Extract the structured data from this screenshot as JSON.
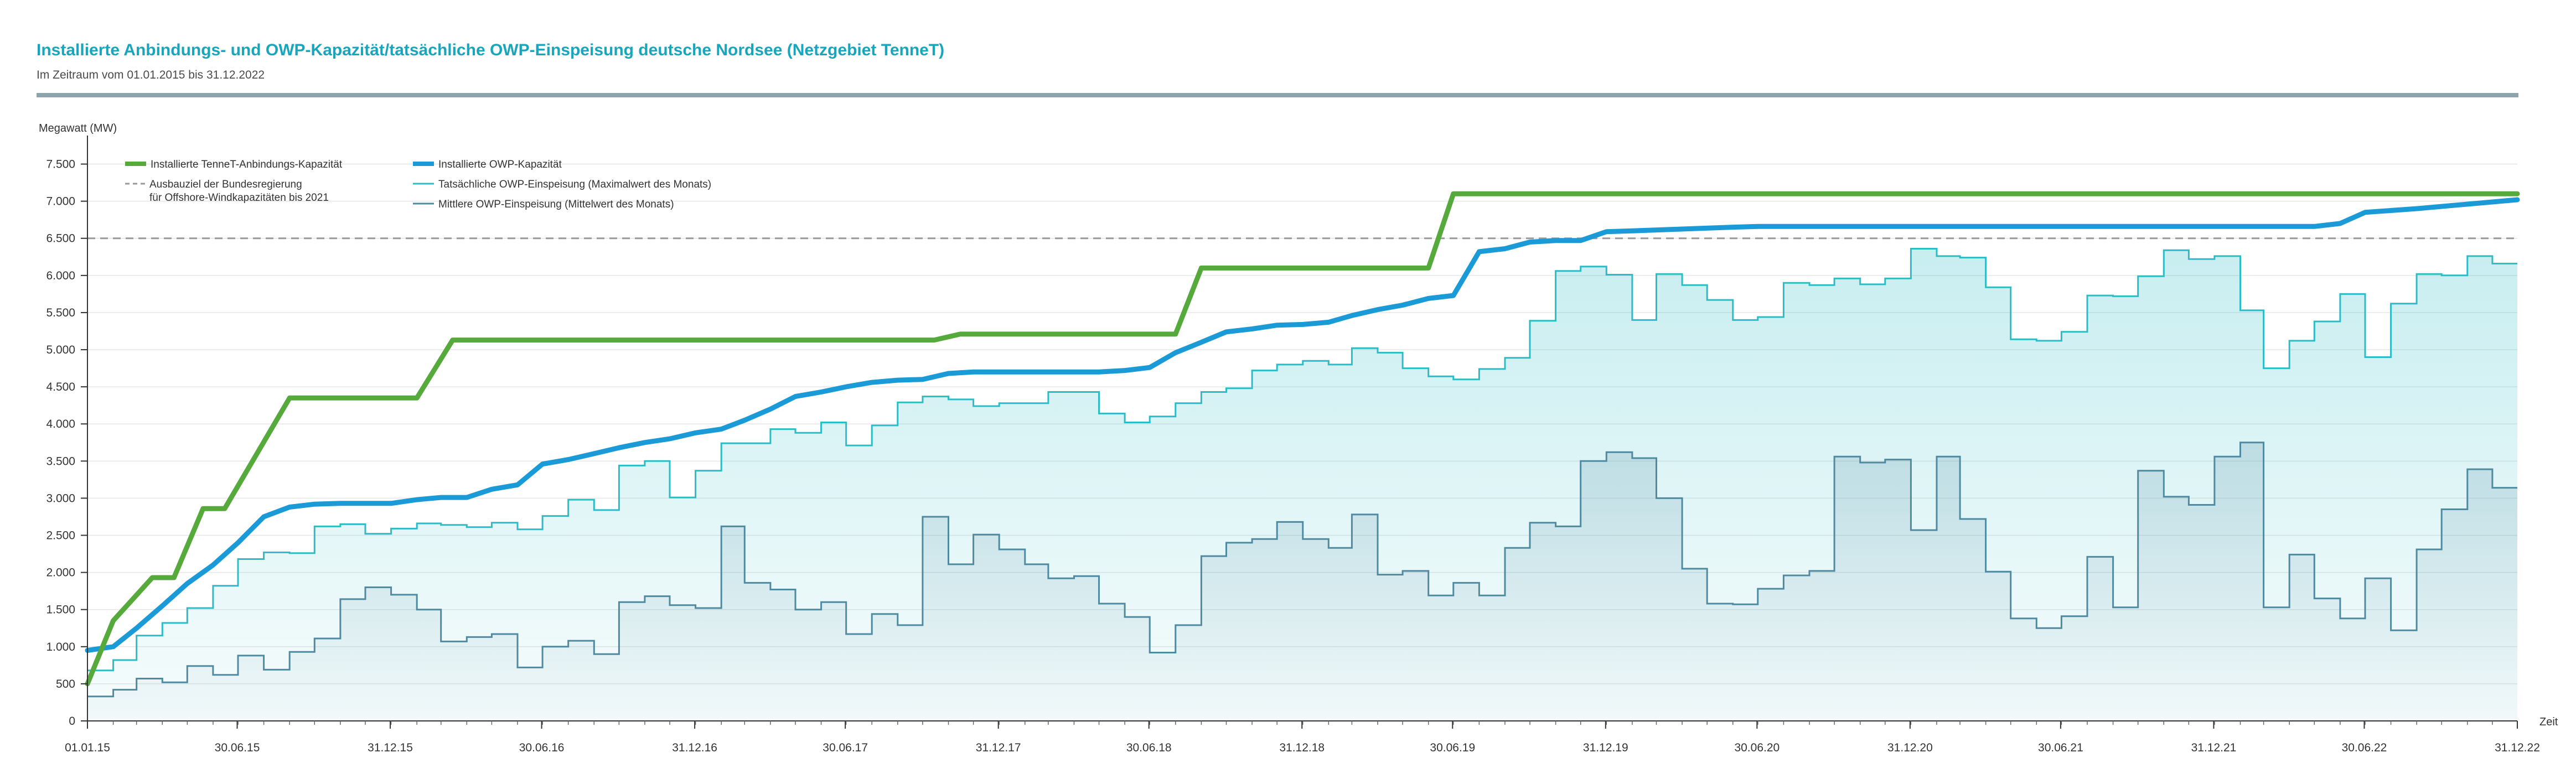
{
  "header": {
    "title": "Installierte Anbindungs- und OWP-Kapazität/tatsächliche OWP-Einspeisung deutsche Nordsee (Netzgebiet TenneT)",
    "subtitle": "Im Zeitraum vom 01.01.2015 bis 31.12.2022"
  },
  "colors": {
    "divider": "#8fa3ac",
    "anbindung": "#56aa3c",
    "owp_capacity": "#1a9ad6",
    "einspeisung_max": "#2cbcc6",
    "einspeisung_mittel": "#4f8aa1",
    "ausbauziel": "#999999",
    "axis_text": "#333333"
  },
  "chart_data": {
    "type": "line",
    "ylabel": "Megawatt (MW)",
    "xlabel": "Zeit",
    "ylim": [
      0,
      7750
    ],
    "yticks": [
      0,
      500,
      1000,
      1500,
      2000,
      2500,
      3000,
      3500,
      4000,
      4500,
      5000,
      5500,
      6000,
      6500,
      7000,
      7500
    ],
    "ytick_labels": [
      "0",
      "500",
      "1.000",
      "1.500",
      "2.000",
      "2.500",
      "3.000",
      "3.500",
      "4.000",
      "4.500",
      "5.000",
      "5.500",
      "6.000",
      "6.500",
      "7.000",
      "7.500"
    ],
    "xlim": [
      "2015-01-01",
      "2022-12-31"
    ],
    "xticks": [
      "2015-01-01",
      "2015-06-30",
      "2015-12-31",
      "2016-06-30",
      "2016-12-31",
      "2017-06-30",
      "2017-12-31",
      "2018-06-30",
      "2018-12-31",
      "2019-06-30",
      "2019-12-31",
      "2020-06-30",
      "2020-12-31",
      "2021-06-30",
      "2021-12-31",
      "2022-06-30",
      "2022-12-31"
    ],
    "xtick_labels": [
      "01.01.15",
      "30.06.15",
      "31.12.15",
      "30.06.16",
      "31.12.16",
      "30.06.17",
      "31.12.17",
      "30.06.18",
      "31.12.18",
      "30.06.19",
      "31.12.19",
      "30.06.20",
      "31.12.20",
      "30.06.21",
      "31.12.21",
      "30.06.22",
      "31.12.22"
    ],
    "grid": "horizontal",
    "legend_position": "top-left",
    "reference_lines": [
      {
        "name": "Ausbauziel der Bundesregierung für Offshore-Windkapazitäten bis 2021",
        "name_lines": [
          "Ausbauziel der Bundesregierung",
          "für Offshore-Windkapazitäten bis 2021"
        ],
        "y": 6500,
        "style": "dashed",
        "color": "#999999"
      }
    ],
    "series": [
      {
        "name": "Installierte TenneT-Anbindungs-Kapazität",
        "style": "line",
        "color": "#56aa3c",
        "points": [
          [
            "2015-01-01",
            500
          ],
          [
            "2015-02-01",
            1350
          ],
          [
            "2015-03-20",
            1930
          ],
          [
            "2015-04-15",
            1930
          ],
          [
            "2015-05-20",
            2860
          ],
          [
            "2015-06-15",
            2860
          ],
          [
            "2015-09-01",
            4350
          ],
          [
            "2016-02-01",
            4350
          ],
          [
            "2016-03-15",
            5130
          ],
          [
            "2017-10-15",
            5130
          ],
          [
            "2017-11-15",
            5210
          ],
          [
            "2018-08-01",
            5210
          ],
          [
            "2018-09-01",
            6100
          ],
          [
            "2019-06-01",
            6100
          ],
          [
            "2019-07-01",
            7100
          ],
          [
            "2022-12-31",
            7100
          ]
        ]
      },
      {
        "name": "Installierte OWP-Kapazität",
        "style": "line",
        "color": "#1a9ad6",
        "points": [
          [
            "2015-01-01",
            950
          ],
          [
            "2015-02-01",
            1000
          ],
          [
            "2015-03-01",
            1250
          ],
          [
            "2015-04-01",
            1550
          ],
          [
            "2015-05-01",
            1850
          ],
          [
            "2015-06-01",
            2100
          ],
          [
            "2015-07-01",
            2400
          ],
          [
            "2015-08-01",
            2750
          ],
          [
            "2015-09-01",
            2880
          ],
          [
            "2015-10-01",
            2920
          ],
          [
            "2015-11-01",
            2930
          ],
          [
            "2016-01-01",
            2930
          ],
          [
            "2016-02-01",
            2980
          ],
          [
            "2016-03-01",
            3010
          ],
          [
            "2016-04-01",
            3010
          ],
          [
            "2016-05-01",
            3120
          ],
          [
            "2016-06-01",
            3180
          ],
          [
            "2016-07-01",
            3460
          ],
          [
            "2016-08-01",
            3520
          ],
          [
            "2016-09-01",
            3600
          ],
          [
            "2016-10-01",
            3680
          ],
          [
            "2016-11-01",
            3750
          ],
          [
            "2016-12-01",
            3800
          ],
          [
            "2017-01-01",
            3880
          ],
          [
            "2017-02-01",
            3930
          ],
          [
            "2017-03-01",
            4050
          ],
          [
            "2017-04-01",
            4200
          ],
          [
            "2017-05-01",
            4370
          ],
          [
            "2017-06-01",
            4430
          ],
          [
            "2017-07-01",
            4500
          ],
          [
            "2017-08-01",
            4560
          ],
          [
            "2017-09-01",
            4590
          ],
          [
            "2017-10-01",
            4600
          ],
          [
            "2017-11-01",
            4680
          ],
          [
            "2017-12-01",
            4700
          ],
          [
            "2018-05-01",
            4700
          ],
          [
            "2018-06-01",
            4720
          ],
          [
            "2018-07-01",
            4760
          ],
          [
            "2018-08-01",
            4960
          ],
          [
            "2018-09-01",
            5100
          ],
          [
            "2018-10-01",
            5240
          ],
          [
            "2018-11-01",
            5280
          ],
          [
            "2018-12-01",
            5330
          ],
          [
            "2019-01-01",
            5340
          ],
          [
            "2019-02-01",
            5370
          ],
          [
            "2019-03-01",
            5460
          ],
          [
            "2019-04-01",
            5540
          ],
          [
            "2019-05-01",
            5600
          ],
          [
            "2019-06-01",
            5690
          ],
          [
            "2019-07-01",
            5730
          ],
          [
            "2019-08-01",
            6320
          ],
          [
            "2019-09-01",
            6360
          ],
          [
            "2019-10-01",
            6450
          ],
          [
            "2019-11-01",
            6470
          ],
          [
            "2019-12-01",
            6470
          ],
          [
            "2020-01-01",
            6590
          ],
          [
            "2020-02-01",
            6600
          ],
          [
            "2020-06-01",
            6650
          ],
          [
            "2020-07-01",
            6660
          ],
          [
            "2022-05-01",
            6660
          ],
          [
            "2022-06-01",
            6700
          ],
          [
            "2022-07-01",
            6850
          ],
          [
            "2022-09-01",
            6900
          ],
          [
            "2022-12-31",
            7020
          ]
        ]
      },
      {
        "name": "Tatsächliche OWP-Einspeisung (Maximalwert des Monats)",
        "style": "step-area",
        "color": "#2cbcc6",
        "start": "2015-01-01",
        "monthly_values": [
          680,
          820,
          1150,
          1320,
          1520,
          1820,
          2180,
          2270,
          2260,
          2620,
          2650,
          2520,
          2590,
          2660,
          2640,
          2610,
          2670,
          2580,
          2760,
          2980,
          2840,
          3440,
          3500,
          3010,
          3370,
          3740,
          3740,
          3930,
          3880,
          4020,
          3710,
          3980,
          4290,
          4370,
          4330,
          4240,
          4280,
          4280,
          4430,
          4430,
          4140,
          4020,
          4100,
          4280,
          4430,
          4480,
          4720,
          4800,
          4850,
          4800,
          5020,
          4960,
          4750,
          4640,
          4600,
          4740,
          4890,
          5390,
          6060,
          6120,
          6010,
          5400,
          6020,
          5870,
          5670,
          5400,
          5440,
          5900,
          5870,
          5960,
          5880,
          5960,
          6360,
          6260,
          6240,
          5840,
          5140,
          5120,
          5240,
          5730,
          5720,
          5990,
          6340,
          6220,
          6260,
          5530,
          4750,
          5120,
          5380,
          5750,
          4900,
          5620,
          6020,
          6000,
          6260,
          6160
        ]
      },
      {
        "name": "Mittlere OWP-Einspeisung (Mittelwert des Monats)",
        "style": "step-area",
        "color": "#4f8aa1",
        "start": "2015-01-01",
        "monthly_values": [
          330,
          420,
          570,
          520,
          740,
          620,
          880,
          690,
          930,
          1110,
          1640,
          1800,
          1700,
          1500,
          1070,
          1130,
          1170,
          720,
          1000,
          1080,
          900,
          1600,
          1680,
          1560,
          1520,
          2620,
          1860,
          1770,
          1500,
          1600,
          1170,
          1440,
          1290,
          2750,
          2110,
          2510,
          2310,
          2110,
          1920,
          1950,
          1580,
          1400,
          920,
          1290,
          2220,
          2400,
          2450,
          2680,
          2450,
          2330,
          2780,
          1970,
          2020,
          1690,
          1860,
          1690,
          2330,
          2670,
          2620,
          3500,
          3620,
          3540,
          3000,
          2050,
          1580,
          1570,
          1780,
          1960,
          2020,
          3560,
          3480,
          3520,
          2570,
          3560,
          2720,
          2010,
          1380,
          1250,
          1410,
          2210,
          1530,
          3370,
          3020,
          2910,
          3560,
          3750,
          1530,
          2240,
          1650,
          1380,
          1920,
          1220,
          2310,
          2850,
          3390,
          3140
        ]
      }
    ]
  }
}
